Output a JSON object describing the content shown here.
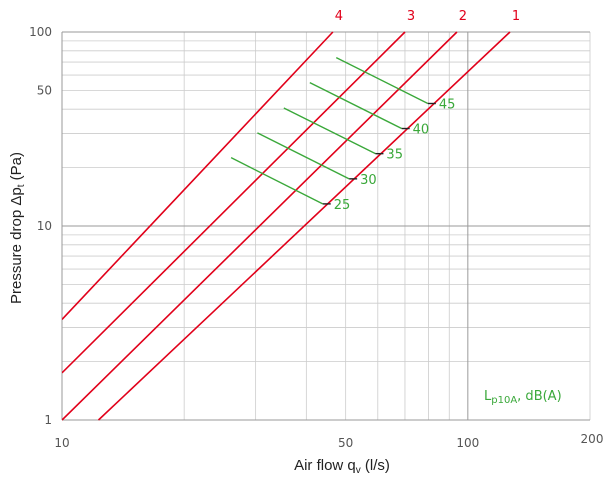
{
  "chart_data": {
    "type": "line",
    "xlabel": {
      "main": "Air flow q",
      "sub": "v",
      "unit": " (l/s)"
    },
    "ylabel": {
      "main": "Pressure drop Δp",
      "sub": "t",
      "unit": " (Pa)"
    },
    "x_scale": "log",
    "y_scale": "log",
    "xlim": [
      10,
      200
    ],
    "ylim": [
      1,
      100
    ],
    "x_ticks": [
      10,
      50,
      100,
      200
    ],
    "x_tick_labels": [
      "10",
      "50",
      "100",
      "200"
    ],
    "y_ticks": [
      1,
      10,
      50,
      100
    ],
    "y_tick_labels": [
      "1",
      "10",
      "50",
      "100"
    ],
    "grid": true,
    "series": [
      {
        "name": "1",
        "color": "#e1001a",
        "points": [
          [
            12.3,
            1
          ],
          [
            127,
            100
          ]
        ]
      },
      {
        "name": "2",
        "color": "#e1001a",
        "points": [
          [
            10,
            1
          ],
          [
            94,
            100
          ]
        ]
      },
      {
        "name": "3",
        "color": "#e1001a",
        "points": [
          [
            10,
            1.75
          ],
          [
            70,
            100
          ]
        ]
      },
      {
        "name": "4",
        "color": "#e1001a",
        "points": [
          [
            10,
            3.3
          ],
          [
            46.5,
            100
          ]
        ]
      }
    ],
    "sound_levels": {
      "label": {
        "main": "L",
        "sub": "p10A",
        "rest": ", dB(A)"
      },
      "color": "#3aa83a",
      "lines": [
        {
          "label": "25",
          "points": [
            [
              26.1,
              22.5
            ],
            [
              43.9,
              13
            ]
          ]
        },
        {
          "label": "30",
          "points": [
            [
              30.3,
              30.2
            ],
            [
              51,
              17.5
            ]
          ]
        },
        {
          "label": "35",
          "points": [
            [
              35.2,
              40.6
            ],
            [
              59.2,
              23.6
            ]
          ]
        },
        {
          "label": "40",
          "points": [
            [
              40.8,
              54.8
            ],
            [
              68.7,
              31.8
            ]
          ]
        },
        {
          "label": "45",
          "points": [
            [
              47.4,
              73.8
            ],
            [
              79.7,
              42.8
            ]
          ]
        }
      ]
    }
  }
}
